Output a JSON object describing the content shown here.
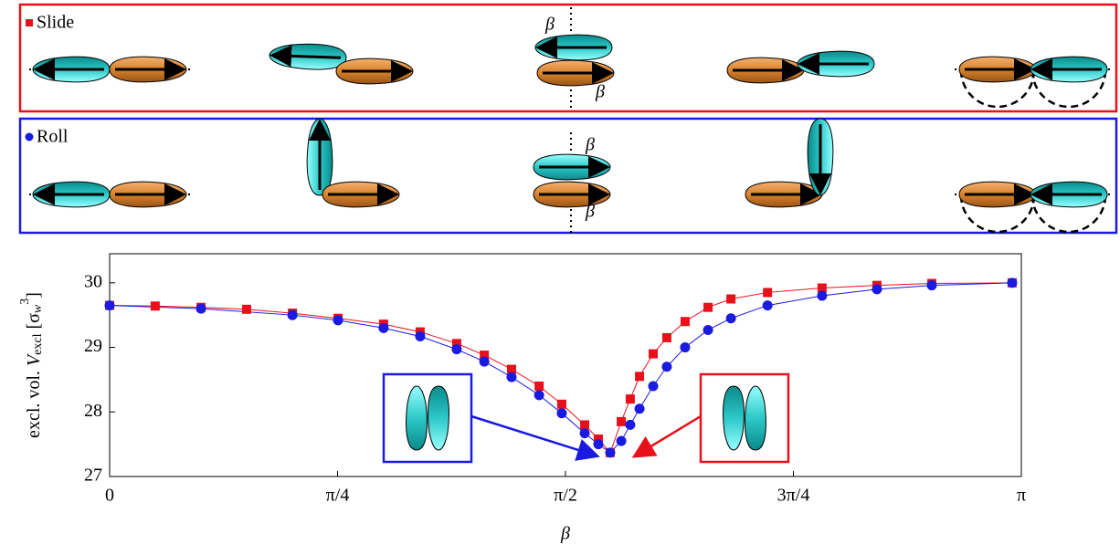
{
  "chart_data": {
    "type": "scatter-line",
    "panels": [
      {
        "label": "Slide",
        "color": "#e8101a"
      },
      {
        "label": "Roll",
        "color": "#1a1ae0"
      }
    ],
    "annotations": [
      "β",
      "β",
      "β",
      "β"
    ],
    "xlabel": "β",
    "ylabel": {
      "main": "excl. vol. ",
      "var": "V",
      "sub": "excl",
      "open": " [σ",
      "unit_sub": "w",
      "unit_sup": "3",
      "close": "]"
    },
    "xlim": [
      0,
      3.14159
    ],
    "ylim": [
      27,
      30.45
    ],
    "xticks": [
      0,
      {
        "value": 0.785398,
        "label": "π/4"
      },
      {
        "value": 1.570796,
        "label": "π/2"
      },
      {
        "value": 2.356194,
        "label": "3π/4"
      },
      {
        "value": 3.14159,
        "label": "π"
      }
    ],
    "yticks": [
      27,
      28,
      29,
      30
    ],
    "series": [
      {
        "name": "Slide",
        "color": "#e8101a",
        "marker": "square",
        "x": [
          0,
          0.157,
          0.315,
          0.472,
          0.63,
          0.787,
          0.944,
          1.07,
          1.196,
          1.291,
          1.385,
          1.48,
          1.558,
          1.637,
          1.684,
          1.725,
          1.763,
          1.794,
          1.826,
          1.873,
          1.92,
          1.983,
          2.062,
          2.141,
          2.267,
          2.455,
          2.644,
          2.833,
          3.11
        ],
        "values": [
          29.65,
          29.64,
          29.62,
          29.59,
          29.53,
          29.45,
          29.36,
          29.24,
          29.06,
          28.88,
          28.66,
          28.4,
          28.12,
          27.8,
          27.58,
          27.37,
          27.85,
          28.2,
          28.55,
          28.9,
          29.15,
          29.4,
          29.62,
          29.75,
          29.85,
          29.92,
          29.96,
          29.99,
          30.0
        ]
      },
      {
        "name": "Roll",
        "color": "#1a1ae0",
        "marker": "circle",
        "x": [
          0,
          0.315,
          0.63,
          0.787,
          0.944,
          1.07,
          1.196,
          1.291,
          1.385,
          1.48,
          1.558,
          1.637,
          1.684,
          1.725,
          1.763,
          1.794,
          1.826,
          1.873,
          1.92,
          1.983,
          2.062,
          2.141,
          2.267,
          2.455,
          2.644,
          2.833,
          3.11
        ],
        "values": [
          29.65,
          29.6,
          29.5,
          29.42,
          29.3,
          29.17,
          28.97,
          28.78,
          28.54,
          28.26,
          27.98,
          27.67,
          27.5,
          27.37,
          27.55,
          27.8,
          28.05,
          28.4,
          28.7,
          29.0,
          29.27,
          29.45,
          29.65,
          29.8,
          29.9,
          29.96,
          30.0
        ]
      }
    ]
  }
}
